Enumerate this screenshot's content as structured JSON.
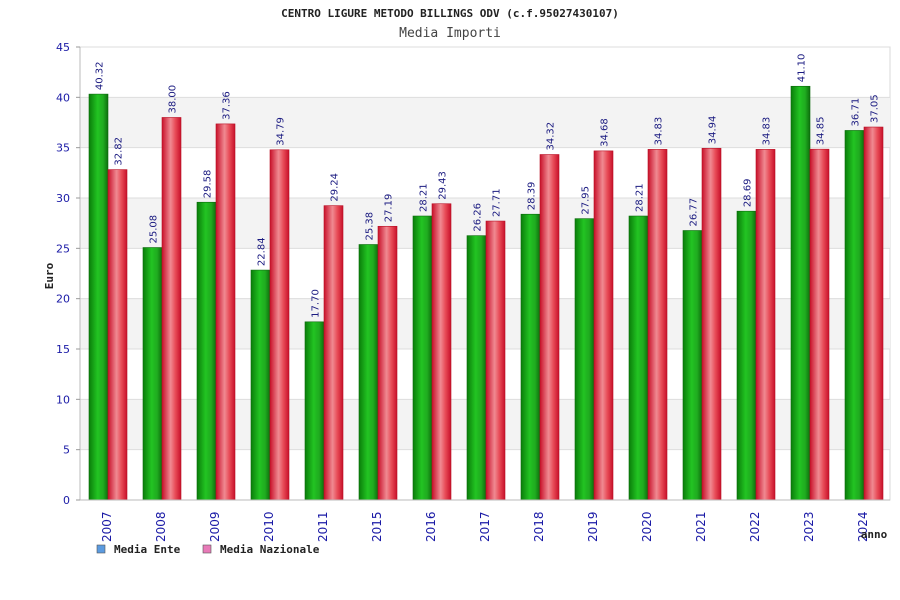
{
  "chart_data": {
    "type": "bar",
    "title": "CENTRO LIGURE METODO BILLINGS ODV (c.f.95027430107)",
    "subtitle": "Media Importi",
    "ylabel": "Euro",
    "xlabel": "anno",
    "ylim": [
      0,
      45
    ],
    "yticks": [
      "0",
      "5",
      "10",
      "15",
      "20",
      "25",
      "30",
      "35",
      "40",
      "45"
    ],
    "grid": true,
    "legend_position": "bottom-left",
    "categories": [
      "2007",
      "2008",
      "2009",
      "2010",
      "2011",
      "2015",
      "2016",
      "2017",
      "2018",
      "2019",
      "2020",
      "2021",
      "2022",
      "2023",
      "2024"
    ],
    "series": [
      {
        "name": "Media Ente",
        "legend_color": "#5b9be0",
        "bar_color": "#22b522",
        "values": [
          40.32,
          25.08,
          29.58,
          22.84,
          17.7,
          25.38,
          28.21,
          26.26,
          28.39,
          27.95,
          28.21,
          26.77,
          28.69,
          41.1,
          36.71
        ],
        "labels": [
          "40.32",
          "25.08",
          "29.58",
          "22.84",
          "17.70",
          "25.38",
          "28.21",
          "26.26",
          "28.39",
          "27.95",
          "28.21",
          "26.77",
          "28.69",
          "41.10",
          "36.71"
        ]
      },
      {
        "name": "Media Nazionale",
        "legend_color": "#e87ab8",
        "bar_color": "#e8303a",
        "values": [
          32.82,
          38.0,
          37.36,
          34.79,
          29.24,
          27.19,
          29.43,
          27.71,
          34.32,
          34.68,
          34.83,
          34.94,
          34.83,
          34.85,
          37.05
        ],
        "labels": [
          "32.82",
          "38.00",
          "37.36",
          "34.79",
          "29.24",
          "27.19",
          "29.43",
          "27.71",
          "34.32",
          "34.68",
          "34.83",
          "34.94",
          "34.83",
          "34.85",
          "37.05"
        ]
      }
    ]
  }
}
